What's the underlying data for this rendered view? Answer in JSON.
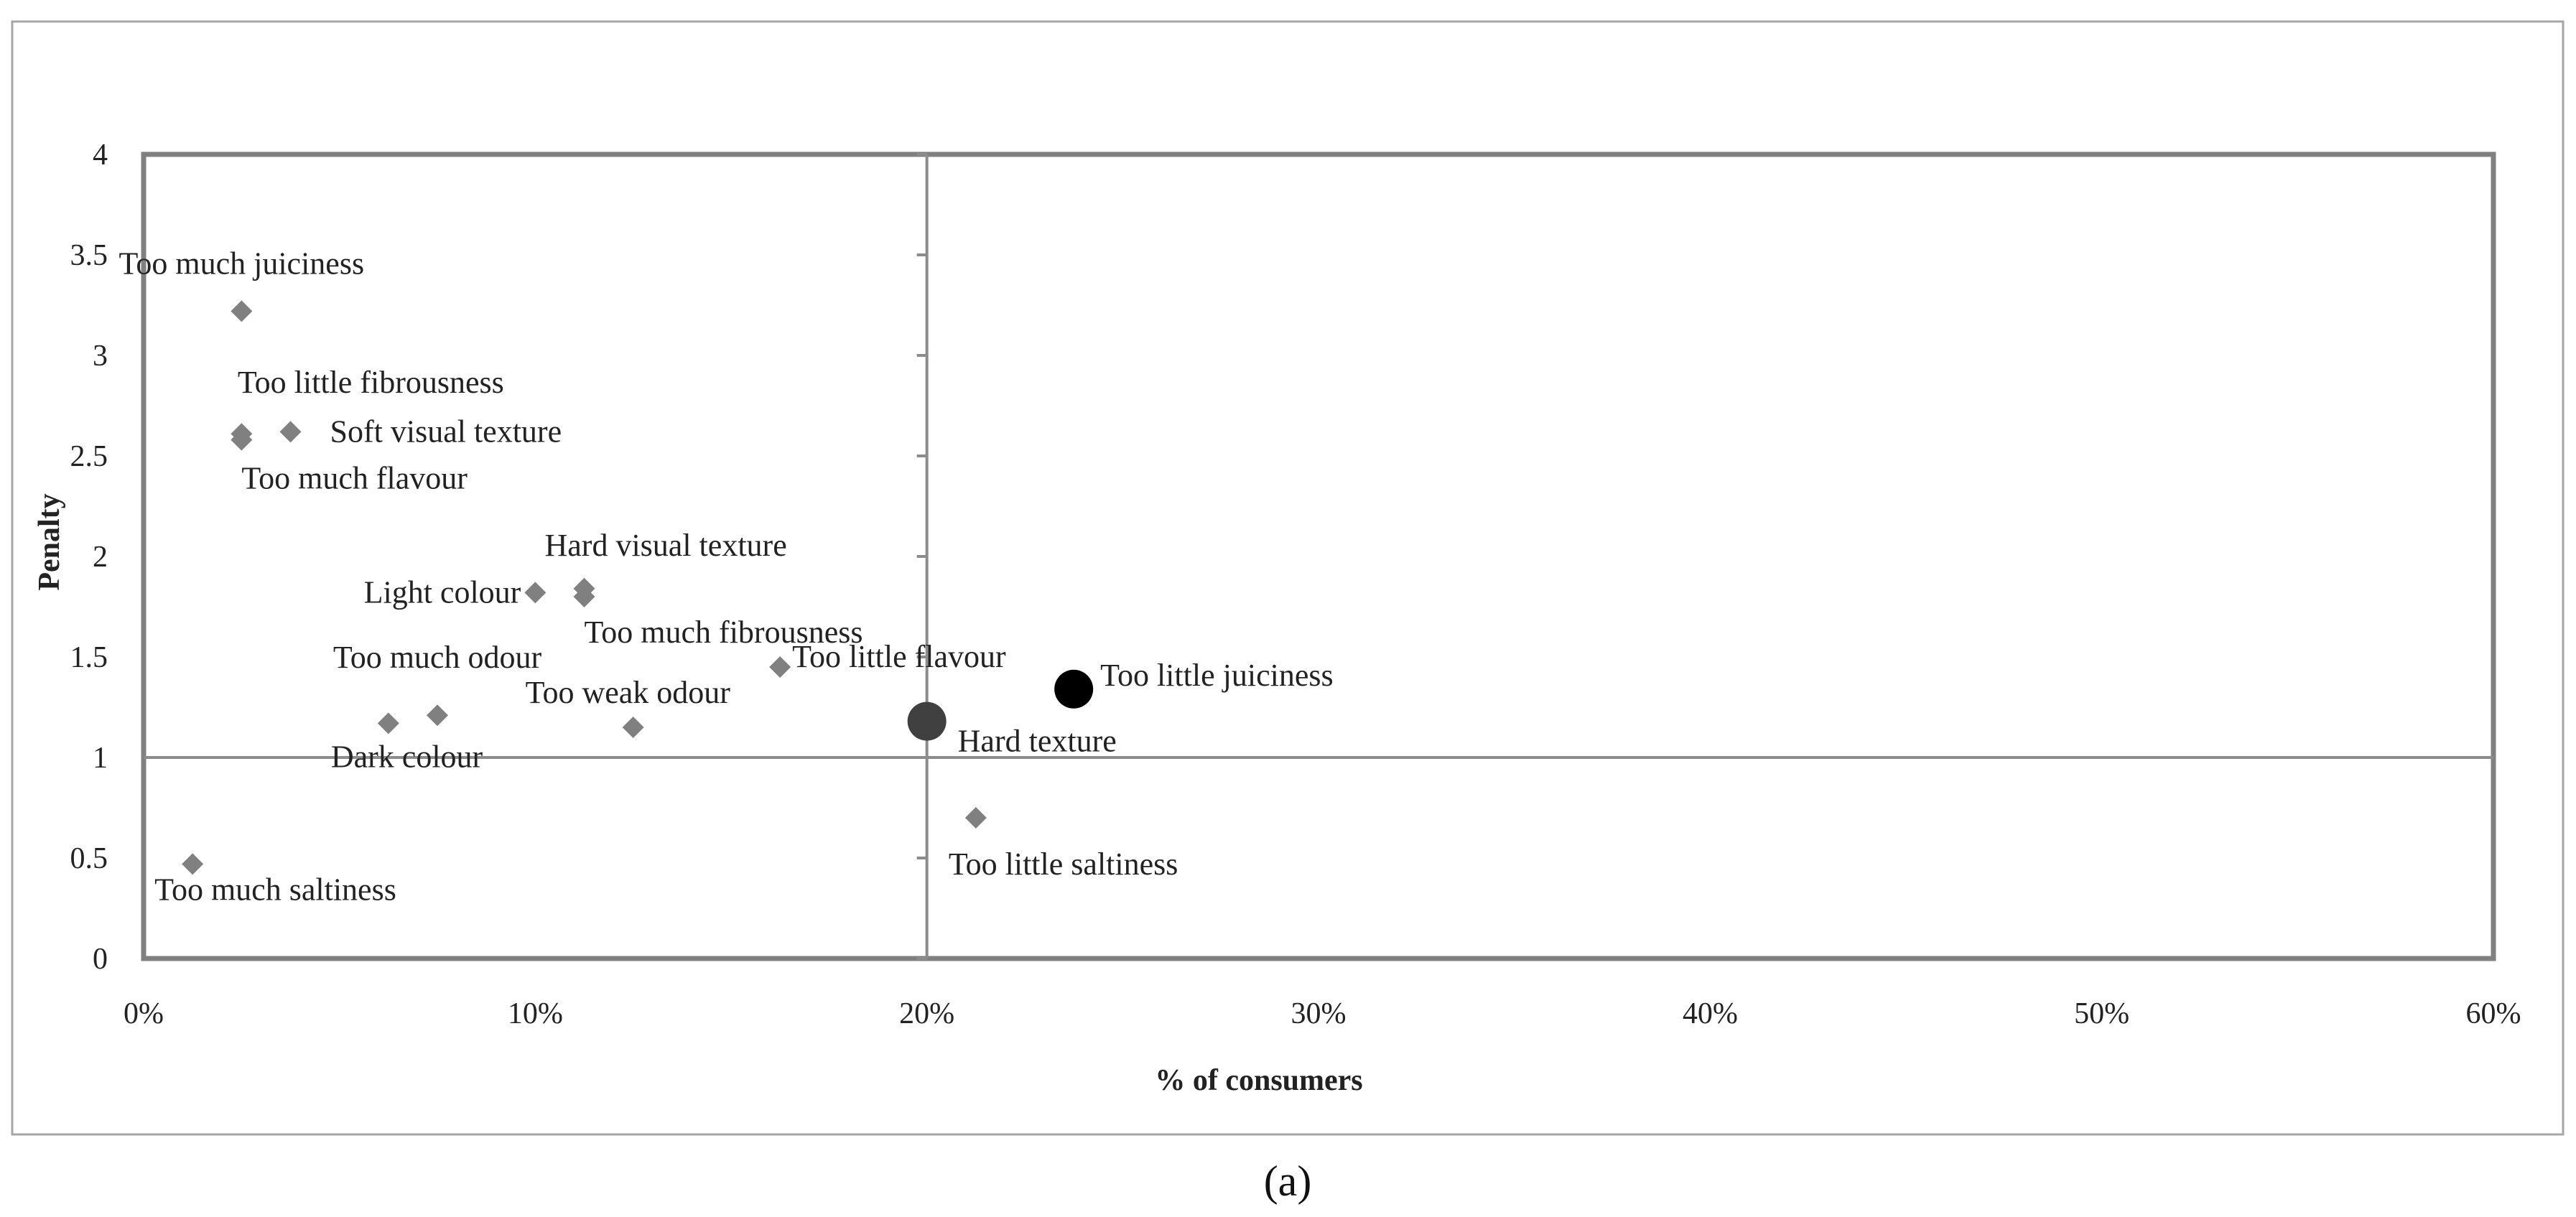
{
  "chart_data": {
    "type": "scatter",
    "xlabel": "% of consumers",
    "ylabel": "Penalty",
    "xlim": [
      0,
      60
    ],
    "ylim": [
      0,
      4
    ],
    "x_unit": "%",
    "xticks": [
      "0%",
      "10%",
      "20%",
      "30%",
      "40%",
      "50%",
      "60%"
    ],
    "yticks": [
      "0",
      "0.5",
      "1",
      "1.5",
      "2",
      "2.5",
      "3",
      "3.5",
      "4"
    ],
    "reference_lines": {
      "x": 20,
      "y": 1
    },
    "grid": false,
    "legend": "none",
    "points": [
      {
        "label": "Too much juiciness",
        "x": 2.5,
        "y": 3.22,
        "marker": "diamond",
        "color": "#808080"
      },
      {
        "label": "Too little fibrousness",
        "x": 2.5,
        "y": 2.61,
        "marker": "diamond",
        "color": "#808080"
      },
      {
        "label": "Too much flavour",
        "x": 2.5,
        "y": 2.58,
        "marker": "diamond",
        "color": "#808080"
      },
      {
        "label": "Soft visual texture",
        "x": 3.75,
        "y": 2.62,
        "marker": "diamond",
        "color": "#808080"
      },
      {
        "label": "Hard visual texture",
        "x": 11.25,
        "y": 1.84,
        "marker": "diamond",
        "color": "#808080"
      },
      {
        "label": "Light colour",
        "x": 10.0,
        "y": 1.82,
        "marker": "diamond",
        "color": "#808080"
      },
      {
        "label": "Too much fibrousness",
        "x": 11.25,
        "y": 1.8,
        "marker": "diamond",
        "color": "#808080"
      },
      {
        "label": "Too much odour",
        "x": 7.5,
        "y": 1.21,
        "marker": "diamond",
        "color": "#808080"
      },
      {
        "label": "Dark colour",
        "x": 6.25,
        "y": 1.17,
        "marker": "diamond",
        "color": "#808080"
      },
      {
        "label": "Too weak odour",
        "x": 12.5,
        "y": 1.15,
        "marker": "diamond",
        "color": "#808080"
      },
      {
        "label": "Too little flavour",
        "x": 16.25,
        "y": 1.45,
        "marker": "diamond",
        "color": "#808080"
      },
      {
        "label": "Hard texture",
        "x": 20.0,
        "y": 1.18,
        "marker": "circle",
        "color": "#404040"
      },
      {
        "label": "Too little juiciness",
        "x": 23.75,
        "y": 1.34,
        "marker": "circle",
        "color": "#000000"
      },
      {
        "label": "Too little saltiness",
        "x": 21.25,
        "y": 0.7,
        "marker": "diamond",
        "color": "#808080"
      },
      {
        "label": "Too much saltiness",
        "x": 1.25,
        "y": 0.47,
        "marker": "diamond",
        "color": "#808080"
      }
    ]
  },
  "panel_label": "(a)",
  "colors": {
    "plot_border": "#808080",
    "reference_line": "#8c8c8c",
    "outer_border": "#a6a6a6",
    "diamond": "#808080"
  }
}
